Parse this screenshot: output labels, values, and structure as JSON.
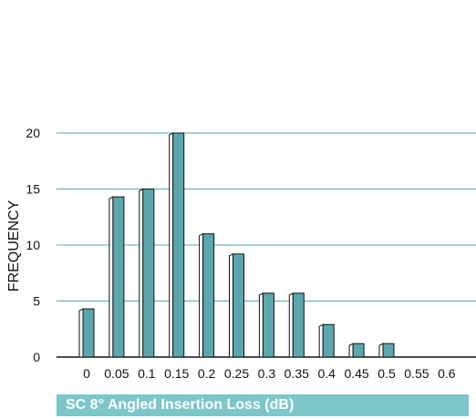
{
  "chart_data": {
    "type": "bar",
    "title": "",
    "xlabel": "SC 8° Angled Insertion Loss (dB)",
    "ylabel": "FREQUENCY",
    "categories": [
      "0",
      "0.05",
      "0.1",
      "0.15",
      "0.2",
      "0.25",
      "0.3",
      "0.35",
      "0.4",
      "0.45",
      "0.5",
      "0.55",
      "0.6"
    ],
    "values": [
      4.3,
      14.3,
      15,
      20,
      11,
      9.2,
      5.7,
      5.7,
      2.9,
      1.2,
      1.2,
      0,
      0
    ],
    "yticks": [
      "0",
      "5",
      "10",
      "15",
      "20"
    ],
    "ylim": [
      0,
      20
    ],
    "grid": true,
    "colors": {
      "bar_front": "#5aa8ad",
      "bar_side": "#ffffff",
      "gridline": "#5aa8ad",
      "caption_bg": "#7cc6c9"
    }
  }
}
